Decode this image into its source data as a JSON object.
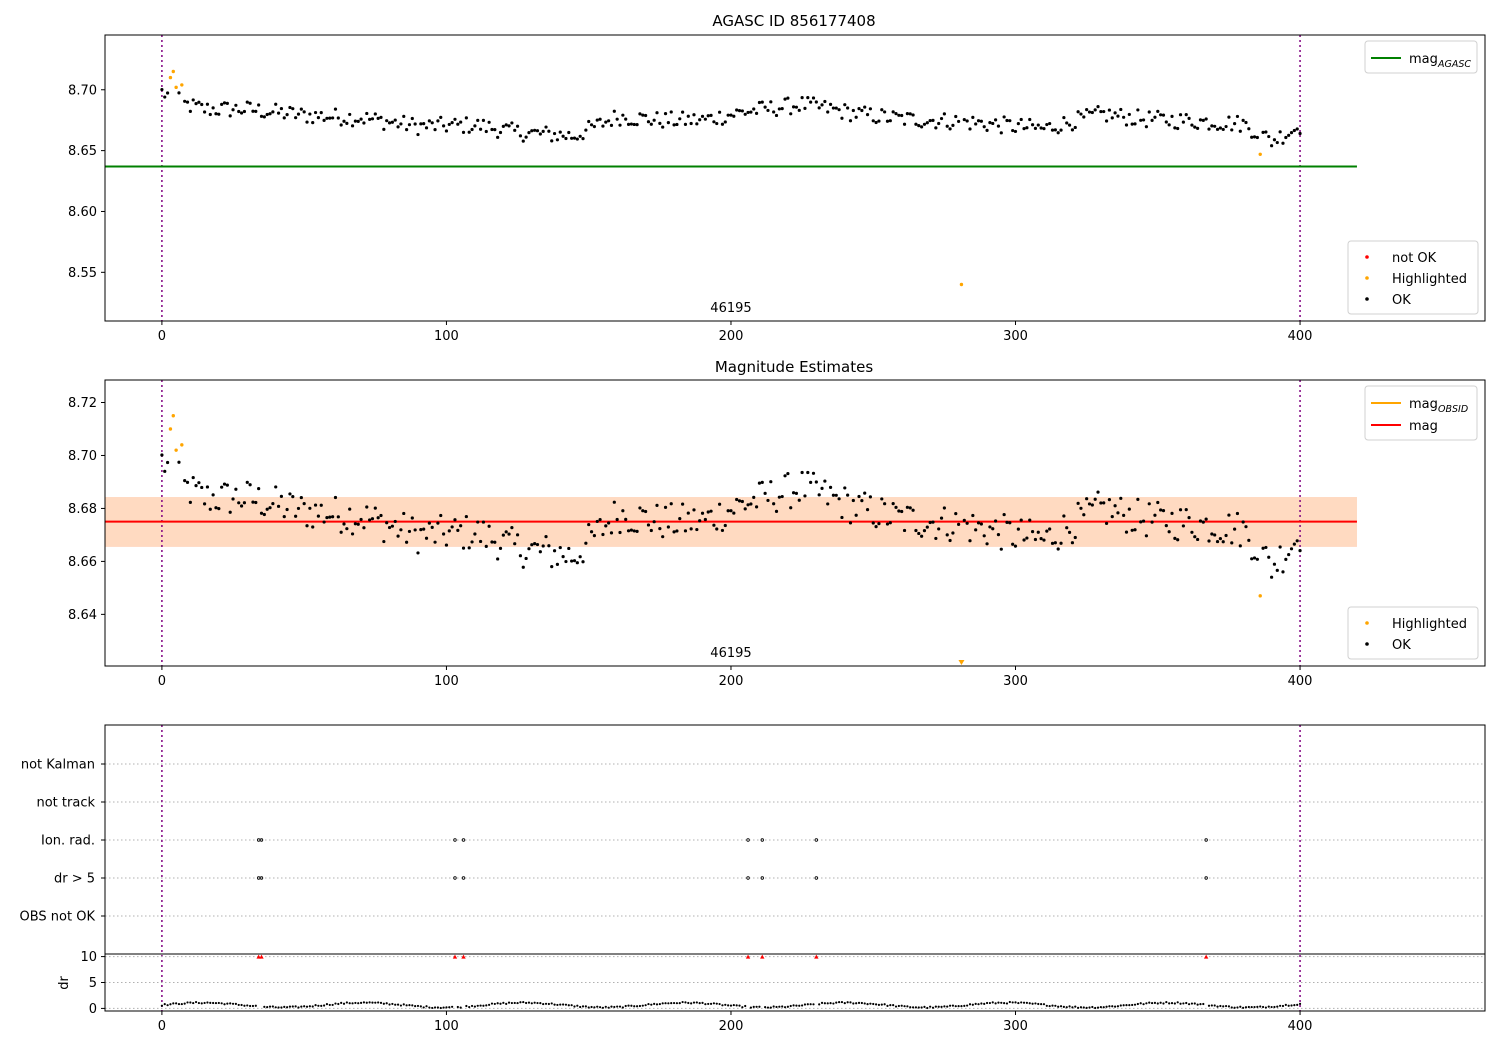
{
  "figure_title": "AGASC ID 856177408",
  "colors": {
    "ok": "#000000",
    "highlighted": "#ffa500",
    "not_ok": "#ff0000",
    "mag_agasc": "#008000",
    "mag_obsid": "#ffa500",
    "mag": "#ff0000",
    "obs_marker": "#800080",
    "band_outer": "#ffc0cb",
    "band_inner": "#ffdab9",
    "grid": "#b0b0b0"
  },
  "chart_data": [
    {
      "type": "scatter",
      "title": "AGASC ID 856177408",
      "xlim": [
        -20,
        465
      ],
      "ylim": [
        8.51,
        8.745
      ],
      "x_ticks": [
        0,
        100,
        200,
        300,
        400
      ],
      "y_ticks": [
        "8.55",
        "8.60",
        "8.65",
        "8.70"
      ],
      "obs_label": "46195",
      "obs_label_x": 200,
      "obs_boundaries": [
        0,
        400
      ],
      "lines": [
        {
          "name": "mag_AGASC",
          "y": 8.637,
          "x": [
            -20,
            420
          ]
        }
      ],
      "highlighted": [
        {
          "x": 3,
          "y": 8.71
        },
        {
          "x": 4,
          "y": 8.715
        },
        {
          "x": 5,
          "y": 8.702
        },
        {
          "x": 7,
          "y": 8.704
        },
        {
          "x": 281,
          "y": 8.54
        },
        {
          "x": 386,
          "y": 8.647
        }
      ],
      "legend_upper": [
        {
          "label_main": "mag",
          "label_sub": "AGASC",
          "kind": "line",
          "color": "#008000"
        }
      ],
      "legend_lower": [
        {
          "label": "not OK",
          "kind": "dot",
          "color": "#ff0000"
        },
        {
          "label": "Highlighted",
          "kind": "dot",
          "color": "#ffa500"
        },
        {
          "label": "OK",
          "kind": "dot",
          "color": "#000000"
        }
      ]
    },
    {
      "type": "scatter",
      "title": "Magnitude Estimates",
      "xlim": [
        -20,
        465
      ],
      "ylim": [
        8.6205,
        8.7285
      ],
      "x_ticks": [
        0,
        100,
        200,
        300,
        400
      ],
      "y_ticks": [
        "8.64",
        "8.66",
        "8.68",
        "8.70",
        "8.72"
      ],
      "obs_label": "46195",
      "obs_label_x": 200,
      "obs_boundaries": [
        0,
        400
      ],
      "band_outer": [
        8.6655,
        8.6843
      ],
      "band_inner": [
        8.6655,
        8.6843
      ],
      "lines": [
        {
          "name": "mag",
          "y": 8.675,
          "x": [
            -20,
            420
          ]
        }
      ],
      "highlighted": [
        {
          "x": 3,
          "y": 8.71
        },
        {
          "x": 4,
          "y": 8.715
        },
        {
          "x": 5,
          "y": 8.702
        },
        {
          "x": 7,
          "y": 8.704
        },
        {
          "x": 386,
          "y": 8.647
        }
      ],
      "off_axis_marker": {
        "x": 281,
        "label": "below range",
        "color": "#ffa500"
      },
      "legend_upper": [
        {
          "label_main": "mag",
          "label_sub": "OBSID",
          "kind": "line",
          "color": "#ffa500"
        },
        {
          "label_main": "mag",
          "label_sub": "",
          "kind": "line",
          "color": "#ff0000"
        }
      ],
      "legend_lower": [
        {
          "label": "Highlighted",
          "kind": "dot",
          "color": "#ffa500"
        },
        {
          "label": "OK",
          "kind": "dot",
          "color": "#000000"
        }
      ]
    },
    {
      "type": "scatter",
      "title": "",
      "xlim": [
        -20,
        465
      ],
      "categories": [
        "not Kalman",
        "not track",
        "Ion. rad.",
        "dr > 5",
        "OBS not OK"
      ],
      "flag_x": {
        "Ion. rad.": [
          34,
          35,
          103,
          106,
          206,
          211,
          230,
          367
        ],
        "dr > 5": [
          34,
          35,
          103,
          106,
          206,
          211,
          230,
          367
        ]
      },
      "obs_boundaries": [
        0,
        400
      ]
    },
    {
      "type": "scatter",
      "title": "",
      "xlim": [
        -20,
        465
      ],
      "ylim": [
        -0.5,
        10.5
      ],
      "y_ticks": [
        "0",
        "5",
        "10"
      ],
      "x_ticks": [
        0,
        100,
        200,
        300,
        400
      ],
      "ylabel": "dr",
      "clipped_x": [
        34,
        35,
        103,
        106,
        206,
        211,
        230,
        367
      ],
      "clipped_y": 10,
      "obs_boundaries": [
        0,
        400
      ]
    }
  ]
}
